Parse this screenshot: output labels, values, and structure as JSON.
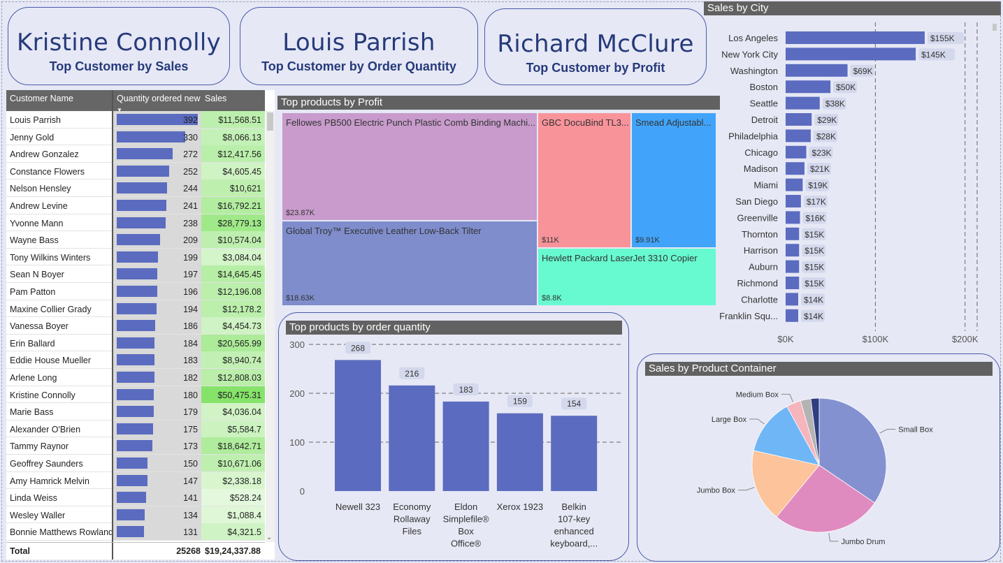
{
  "cards": [
    {
      "name": "Kristine Connolly",
      "caption": "Top Customer by Sales"
    },
    {
      "name": "Louis Parrish",
      "caption": "Top Customer by Order Quantity"
    },
    {
      "name": "Richard McClure",
      "caption": "Top Customer by Profit"
    }
  ],
  "table": {
    "headers": {
      "customer": "Customer Name",
      "quantity": "Quantity ordered new",
      "sales": "Sales"
    },
    "rows": [
      {
        "name": "Louis Parrish",
        "qty": 392,
        "qty_label": "392",
        "sales": 11568.51,
        "sales_label": "$11,568.51"
      },
      {
        "name": "Jenny Gold",
        "qty": 330,
        "qty_label": "330",
        "sales": 8066.13,
        "sales_label": "$8,066.13"
      },
      {
        "name": "Andrew Gonzalez",
        "qty": 272,
        "qty_label": "272",
        "sales": 12417.56,
        "sales_label": "$12,417.56"
      },
      {
        "name": "Constance Flowers",
        "qty": 252,
        "qty_label": "252",
        "sales": 4605.45,
        "sales_label": "$4,605.45"
      },
      {
        "name": "Nelson Hensley",
        "qty": 244,
        "qty_label": "244",
        "sales": 10621,
        "sales_label": "$10,621"
      },
      {
        "name": "Andrew Levine",
        "qty": 241,
        "qty_label": "241",
        "sales": 16792.21,
        "sales_label": "$16,792.21"
      },
      {
        "name": "Yvonne Mann",
        "qty": 238,
        "qty_label": "238",
        "sales": 28779.13,
        "sales_label": "$28,779.13"
      },
      {
        "name": "Wayne Bass",
        "qty": 209,
        "qty_label": "209",
        "sales": 10574.04,
        "sales_label": "$10,574.04"
      },
      {
        "name": "Tony Wilkins Winters",
        "qty": 199,
        "qty_label": "199",
        "sales": 3084.04,
        "sales_label": "$3,084.04"
      },
      {
        "name": "Sean N Boyer",
        "qty": 197,
        "qty_label": "197",
        "sales": 14645.45,
        "sales_label": "$14,645.45"
      },
      {
        "name": "Pam Patton",
        "qty": 196,
        "qty_label": "196",
        "sales": 12196.08,
        "sales_label": "$12,196.08"
      },
      {
        "name": "Maxine Collier Grady",
        "qty": 194,
        "qty_label": "194",
        "sales": 12178.2,
        "sales_label": "$12,178.2"
      },
      {
        "name": "Vanessa Boyer",
        "qty": 186,
        "qty_label": "186",
        "sales": 4454.73,
        "sales_label": "$4,454.73"
      },
      {
        "name": "Erin Ballard",
        "qty": 184,
        "qty_label": "184",
        "sales": 20565.99,
        "sales_label": "$20,565.99"
      },
      {
        "name": "Eddie House Mueller",
        "qty": 183,
        "qty_label": "183",
        "sales": 8940.74,
        "sales_label": "$8,940.74"
      },
      {
        "name": "Arlene Long",
        "qty": 182,
        "qty_label": "182",
        "sales": 12808.03,
        "sales_label": "$12,808.03"
      },
      {
        "name": "Kristine Connolly",
        "qty": 180,
        "qty_label": "180",
        "sales": 50475.31,
        "sales_label": "$50,475.31"
      },
      {
        "name": "Marie Bass",
        "qty": 179,
        "qty_label": "179",
        "sales": 4036.04,
        "sales_label": "$4,036.04"
      },
      {
        "name": "Alexander O'Brien",
        "qty": 175,
        "qty_label": "175",
        "sales": 5584.7,
        "sales_label": "$5,584.7"
      },
      {
        "name": "Tammy Raynor",
        "qty": 173,
        "qty_label": "173",
        "sales": 18642.71,
        "sales_label": "$18,642.71"
      },
      {
        "name": "Geoffrey Saunders",
        "qty": 150,
        "qty_label": "150",
        "sales": 10671.06,
        "sales_label": "$10,671.06"
      },
      {
        "name": "Amy Hamrick Melvin",
        "qty": 147,
        "qty_label": "147",
        "sales": 2338.18,
        "sales_label": "$2,338.18"
      },
      {
        "name": "Linda Weiss",
        "qty": 141,
        "qty_label": "141",
        "sales": 528.24,
        "sales_label": "$528.24"
      },
      {
        "name": "Wesley Waller",
        "qty": 134,
        "qty_label": "134",
        "sales": 1088.4,
        "sales_label": "$1,088.4"
      },
      {
        "name": "Bonnie Matthews Rowland",
        "qty": 131,
        "qty_label": "131",
        "sales": 4321.5,
        "sales_label": "$4,321.5"
      }
    ],
    "total": {
      "label": "Total",
      "qty": "25268",
      "sales": "$19,24,337.88"
    }
  },
  "colors": {
    "bar": "#5b6bbf",
    "sales_green_light": "#eefaea",
    "sales_green_dark": "#86e36a",
    "title_bar": "#616161"
  },
  "treemap": {
    "title": "Top products by Profit",
    "items": [
      {
        "label": "Fellowes PB500 Electric Punch Plastic Comb Binding Machi...",
        "value_label": "$23.87K",
        "value": 23870,
        "color": "#c89bcc"
      },
      {
        "label": "GBC DocuBind TL3...",
        "value_label": "$11K",
        "value": 11000,
        "color": "#f8939a"
      },
      {
        "label": "Smead Adjustabl...",
        "value_label": "$9.91K",
        "value": 9910,
        "color": "#41a4fa"
      },
      {
        "label": "Global Troy™ Executive Leather Low-Back Tilter",
        "value_label": "$18.63K",
        "value": 18630,
        "color": "#7f8dcc"
      },
      {
        "label": "Hewlett Packard LaserJet 3310 Copier",
        "value_label": "$8.8K",
        "value": 8800,
        "color": "#67f9d0"
      }
    ]
  },
  "chart_data": [
    {
      "type": "bar",
      "orientation": "horizontal",
      "title": "Sales by City",
      "categories": [
        "Los Angeles",
        "New York City",
        "Washington",
        "Boston",
        "Seattle",
        "Detroit",
        "Philadelphia",
        "Chicago",
        "Madison",
        "Miami",
        "San Diego",
        "Greenville",
        "Thornton",
        "Harrison",
        "Auburn",
        "Richmond",
        "Charlotte",
        "Franklin Squ..."
      ],
      "values": [
        155,
        145,
        69,
        50,
        38,
        29,
        28,
        23,
        21,
        19,
        17,
        16,
        15,
        15,
        15,
        15,
        14,
        14
      ],
      "value_labels": [
        "$155K",
        "$145K",
        "$69K",
        "$50K",
        "$38K",
        "$29K",
        "$28K",
        "$23K",
        "$21K",
        "$19K",
        "$17K",
        "$16K",
        "$15K",
        "$15K",
        "$15K",
        "$15K",
        "$14K",
        "$14K"
      ],
      "unit": "K USD",
      "xlim": [
        0,
        215
      ],
      "ticks": [
        0,
        100,
        200
      ],
      "tick_labels": [
        "$0K",
        "$100K",
        "$200K"
      ],
      "grid": true
    },
    {
      "type": "bar",
      "title": "Top products by order quantity",
      "categories": [
        "Newell 323",
        "Economy Rollaway Files",
        "Eldon Simplefile® Box Office®",
        "Xerox 1923",
        "Belkin 107-key enhanced keyboard,..."
      ],
      "category_lines": [
        [
          "Newell 323"
        ],
        [
          "Economy",
          "Rollaway",
          "Files"
        ],
        [
          "Eldon",
          "Simplefile®",
          "Box",
          "Office®"
        ],
        [
          "Xerox 1923"
        ],
        [
          "Belkin",
          "107-key",
          "enhanced",
          "keyboard,..."
        ]
      ],
      "values": [
        268,
        216,
        183,
        159,
        154
      ],
      "ylim": [
        0,
        300
      ],
      "ticks": [
        0,
        100,
        200,
        300
      ],
      "grid": true
    },
    {
      "type": "pie",
      "title": "Sales by Product Container",
      "slices": [
        {
          "name": "Small Box",
          "value": 34.5,
          "color": "#8391d0"
        },
        {
          "name": "Jumbo Drum",
          "value": 26.5,
          "color": "#e08bc0"
        },
        {
          "name": "Jumbo Box",
          "value": 17.5,
          "color": "#fdc39a"
        },
        {
          "name": "Large Box",
          "value": 13.5,
          "color": "#6fb6f7"
        },
        {
          "name": "Medium Box",
          "value": 3.5,
          "color": "#f6b4bc"
        },
        {
          "name": "",
          "value": 2.5,
          "color": "#b3b3b3"
        },
        {
          "name": "",
          "value": 2.0,
          "color": "#2f3d82"
        }
      ]
    }
  ]
}
